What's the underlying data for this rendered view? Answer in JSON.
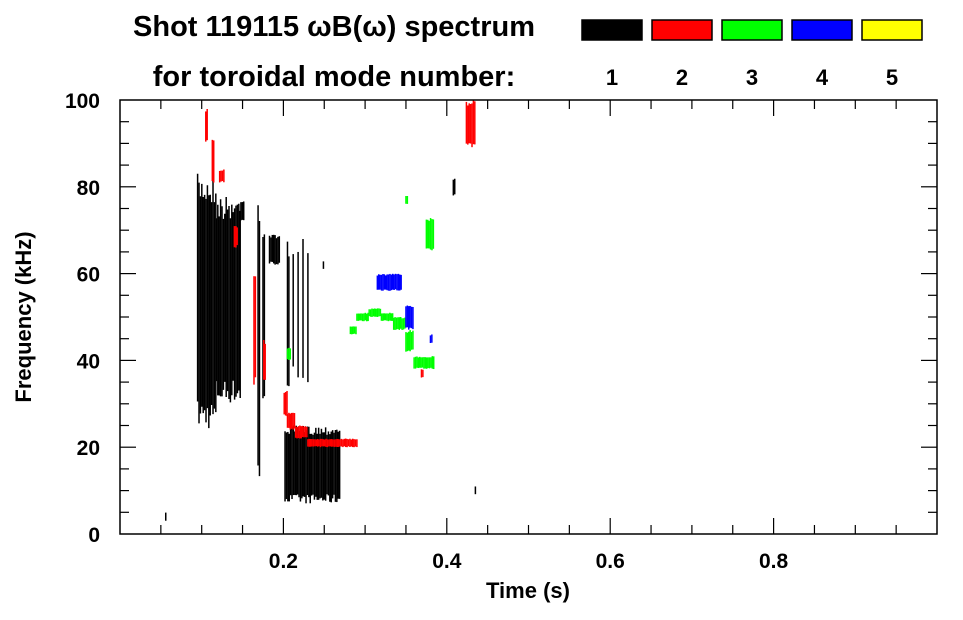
{
  "chart_data": {
    "type": "heatmap",
    "title": "Shot 119115 ωB(ω) spectrum",
    "subtitle": "for toroidal mode number:",
    "xlabel": "Time (s)",
    "ylabel": "Frequency (kHz)",
    "xlim": [
      0,
      1.0
    ],
    "ylim": [
      0,
      100
    ],
    "xticks": [
      0.2,
      0.4,
      0.6,
      0.8
    ],
    "xtick_labels": [
      "0.2",
      "0.4",
      "0.6",
      "0.8"
    ],
    "yticks": [
      0,
      20,
      40,
      60,
      80,
      100
    ],
    "ytick_labels": [
      "0",
      "20",
      "40",
      "60",
      "80",
      "100"
    ],
    "legend": [
      {
        "mode": "1",
        "color": "#000000"
      },
      {
        "mode": "2",
        "color": "#ff0000"
      },
      {
        "mode": "3",
        "color": "#00ff00"
      },
      {
        "mode": "4",
        "color": "#0000ff"
      },
      {
        "mode": "5",
        "color": "#ffff00"
      }
    ],
    "series": [
      {
        "name": "1",
        "color": "#000000",
        "regions_t0_t1_f0_f1": [
          [
            0.095,
            0.118,
            24,
            83
          ],
          [
            0.118,
            0.148,
            30,
            78
          ],
          [
            0.148,
            0.153,
            72,
            77
          ],
          [
            0.169,
            0.171,
            10,
            80
          ],
          [
            0.175,
            0.177,
            30,
            72
          ],
          [
            0.183,
            0.195,
            62,
            69
          ],
          [
            0.205,
            0.207,
            30,
            68
          ],
          [
            0.212,
            0.213,
            35,
            68
          ],
          [
            0.218,
            0.219,
            35,
            68
          ],
          [
            0.224,
            0.225,
            35,
            68
          ],
          [
            0.23,
            0.231,
            35,
            65
          ],
          [
            0.202,
            0.27,
            7,
            25
          ],
          [
            0.249,
            0.25,
            61,
            63
          ],
          [
            0.408,
            0.41,
            78,
            82
          ],
          [
            0.435,
            0.436,
            9,
            11
          ],
          [
            0.056,
            0.057,
            3,
            5
          ]
        ]
      },
      {
        "name": "2",
        "color": "#ff0000",
        "regions_t0_t1_f0_f1": [
          [
            0.105,
            0.108,
            90,
            98
          ],
          [
            0.113,
            0.115,
            80,
            92
          ],
          [
            0.122,
            0.128,
            81,
            84
          ],
          [
            0.14,
            0.145,
            66,
            71
          ],
          [
            0.164,
            0.166,
            34,
            60
          ],
          [
            0.176,
            0.178,
            35,
            45
          ],
          [
            0.201,
            0.205,
            27,
            33
          ],
          [
            0.205,
            0.215,
            24,
            28
          ],
          [
            0.215,
            0.23,
            22,
            25
          ],
          [
            0.23,
            0.29,
            20,
            22
          ],
          [
            0.424,
            0.435,
            89,
            100
          ],
          [
            0.369,
            0.372,
            36,
            38
          ]
        ]
      },
      {
        "name": "3",
        "color": "#00ff00",
        "regions_t0_t1_f0_f1": [
          [
            0.282,
            0.29,
            46,
            48
          ],
          [
            0.29,
            0.305,
            49,
            51
          ],
          [
            0.305,
            0.32,
            50,
            52
          ],
          [
            0.32,
            0.335,
            49,
            51
          ],
          [
            0.335,
            0.35,
            47,
            50
          ],
          [
            0.35,
            0.36,
            42,
            47
          ],
          [
            0.36,
            0.385,
            38,
            41
          ],
          [
            0.375,
            0.385,
            65,
            73
          ],
          [
            0.35,
            0.352,
            76,
            78
          ],
          [
            0.205,
            0.21,
            40,
            43
          ]
        ]
      },
      {
        "name": "4",
        "color": "#0000ff",
        "regions_t0_t1_f0_f1": [
          [
            0.315,
            0.345,
            56,
            60
          ],
          [
            0.35,
            0.36,
            47,
            53
          ],
          [
            0.38,
            0.382,
            44,
            46
          ]
        ]
      },
      {
        "name": "5",
        "color": "#ffff00",
        "regions_t0_t1_f0_f1": []
      }
    ]
  }
}
